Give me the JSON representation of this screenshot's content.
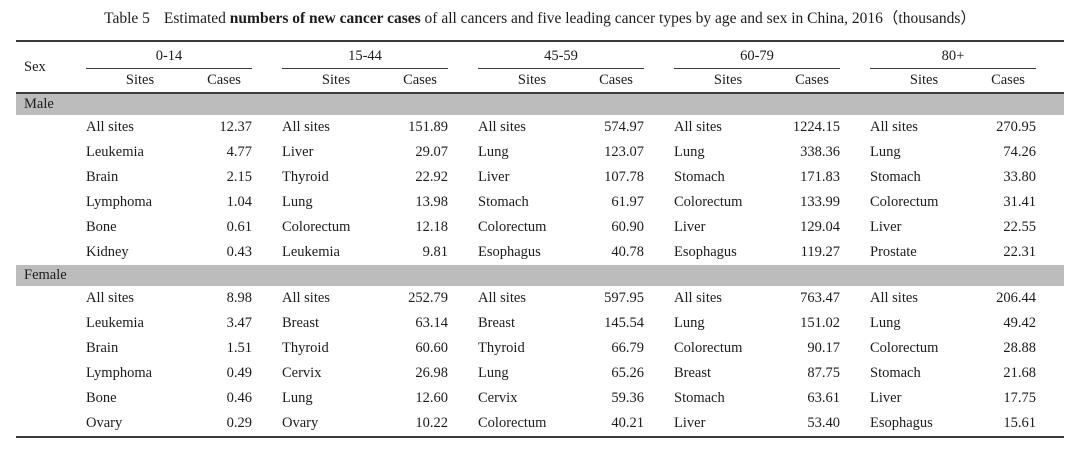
{
  "title": {
    "prefix": "Table 5",
    "pre_bold": "Estimated ",
    "bold": "numbers of new cancer cases",
    "post_bold": " of all cancers and five leading cancer types by age and sex in China, 2016（thousands）"
  },
  "header": {
    "sex_label": "Sex",
    "age_groups": [
      "0-14",
      "15-44",
      "45-59",
      "60-79",
      "80+"
    ],
    "sites_label": "Sites",
    "cases_label": "Cases"
  },
  "colors": {
    "section_band": "#bcbcbc",
    "rule": "#3b3b3b"
  },
  "sections": [
    {
      "label": "Male",
      "rows": [
        [
          "All sites",
          "12.37",
          "All sites",
          "151.89",
          "All sites",
          "574.97",
          "All sites",
          "1224.15",
          "All sites",
          "270.95"
        ],
        [
          "Leukemia",
          "4.77",
          "Liver",
          "29.07",
          "Lung",
          "123.07",
          "Lung",
          "338.36",
          "Lung",
          "74.26"
        ],
        [
          "Brain",
          "2.15",
          "Thyroid",
          "22.92",
          "Liver",
          "107.78",
          "Stomach",
          "171.83",
          "Stomach",
          "33.80"
        ],
        [
          "Lymphoma",
          "1.04",
          "Lung",
          "13.98",
          "Stomach",
          "61.97",
          "Colorectum",
          "133.99",
          "Colorectum",
          "31.41"
        ],
        [
          "Bone",
          "0.61",
          "Colorectum",
          "12.18",
          "Colorectum",
          "60.90",
          "Liver",
          "129.04",
          "Liver",
          "22.55"
        ],
        [
          "Kidney",
          "0.43",
          "Leukemia",
          "9.81",
          "Esophagus",
          "40.78",
          "Esophagus",
          "119.27",
          "Prostate",
          "22.31"
        ]
      ]
    },
    {
      "label": "Female",
      "rows": [
        [
          "All sites",
          "8.98",
          "All sites",
          "252.79",
          "All sites",
          "597.95",
          "All sites",
          "763.47",
          "All sites",
          "206.44"
        ],
        [
          "Leukemia",
          "3.47",
          "Breast",
          "63.14",
          "Breast",
          "145.54",
          "Lung",
          "151.02",
          "Lung",
          "49.42"
        ],
        [
          "Brain",
          "1.51",
          "Thyroid",
          "60.60",
          "Thyroid",
          "66.79",
          "Colorectum",
          "90.17",
          "Colorectum",
          "28.88"
        ],
        [
          "Lymphoma",
          "0.49",
          "Cervix",
          "26.98",
          "Lung",
          "65.26",
          "Breast",
          "87.75",
          "Stomach",
          "21.68"
        ],
        [
          "Bone",
          "0.46",
          "Lung",
          "12.60",
          "Cervix",
          "59.36",
          "Stomach",
          "63.61",
          "Liver",
          "17.75"
        ],
        [
          "Ovary",
          "0.29",
          "Ovary",
          "10.22",
          "Colorectum",
          "40.21",
          "Liver",
          "53.40",
          "Esophagus",
          "15.61"
        ]
      ]
    }
  ]
}
